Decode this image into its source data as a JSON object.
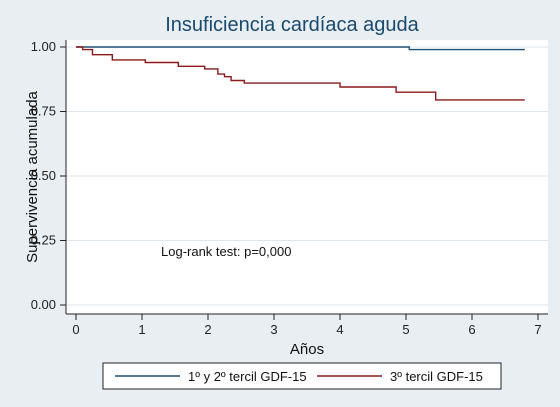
{
  "chart_data": {
    "type": "line",
    "step": true,
    "title": "Insuficiencia cardíaca aguda",
    "xlabel": "Años",
    "ylabel": "Supervivencia acumulada",
    "xlim": [
      0,
      7
    ],
    "ylim": [
      0,
      1
    ],
    "x_ticks": [
      "0",
      "1",
      "2",
      "3",
      "4",
      "5",
      "6",
      "7"
    ],
    "y_ticks": [
      "0.00",
      "0.25",
      "0.50",
      "0.75",
      "1.00"
    ],
    "x_tick_values": [
      0,
      1,
      2,
      3,
      4,
      5,
      6,
      7
    ],
    "y_tick_values": [
      0,
      0.25,
      0.5,
      0.75,
      1.0
    ],
    "grid": "horizontal",
    "legend_position": "bottom",
    "annotation": "Log-rank test: p=0,000",
    "series": [
      {
        "name": "1º y 2º tercil GDF-15",
        "color": "#1f4e79",
        "points": [
          [
            0,
            1.0
          ],
          [
            5.05,
            1.0
          ],
          [
            5.05,
            0.99
          ],
          [
            6.8,
            0.99
          ]
        ]
      },
      {
        "name": "3º tercil GDF-15",
        "color": "#8b1a1a",
        "points": [
          [
            0,
            1.0
          ],
          [
            0.1,
            1.0
          ],
          [
            0.1,
            0.99
          ],
          [
            0.25,
            0.99
          ],
          [
            0.25,
            0.97
          ],
          [
            0.55,
            0.97
          ],
          [
            0.55,
            0.95
          ],
          [
            1.05,
            0.95
          ],
          [
            1.05,
            0.94
          ],
          [
            1.55,
            0.94
          ],
          [
            1.55,
            0.925
          ],
          [
            1.95,
            0.925
          ],
          [
            1.95,
            0.915
          ],
          [
            2.15,
            0.915
          ],
          [
            2.15,
            0.895
          ],
          [
            2.25,
            0.895
          ],
          [
            2.25,
            0.885
          ],
          [
            2.35,
            0.885
          ],
          [
            2.35,
            0.87
          ],
          [
            2.55,
            0.87
          ],
          [
            2.55,
            0.86
          ],
          [
            4.0,
            0.86
          ],
          [
            4.0,
            0.845
          ],
          [
            4.85,
            0.845
          ],
          [
            4.85,
            0.825
          ],
          [
            5.45,
            0.825
          ],
          [
            5.45,
            0.795
          ],
          [
            6.8,
            0.795
          ]
        ]
      }
    ]
  }
}
